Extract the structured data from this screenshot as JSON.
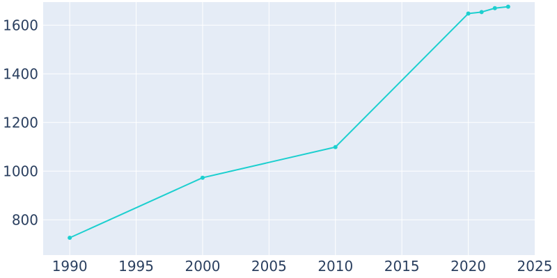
{
  "chart_data": {
    "type": "line",
    "title": "",
    "xlabel": "",
    "ylabel": "",
    "xlim": [
      1988,
      2025
    ],
    "ylim": [
      655,
      1695
    ],
    "x_ticks": [
      1990,
      1995,
      2000,
      2005,
      2010,
      2015,
      2020,
      2025
    ],
    "y_ticks": [
      800,
      1000,
      1200,
      1400,
      1600
    ],
    "grid": true,
    "legend": "none",
    "series": [
      {
        "x": [
          1990,
          2000,
          2010,
          2020,
          2021,
          2022,
          2023
        ],
        "y": [
          726,
          973,
          1099,
          1648,
          1654,
          1670,
          1676
        ]
      }
    ],
    "colors": {
      "plot_background": "#e5ecf6",
      "grid": "#ffffff",
      "line": "#1ccfcf",
      "tick_text": "#2a3f5f"
    }
  }
}
